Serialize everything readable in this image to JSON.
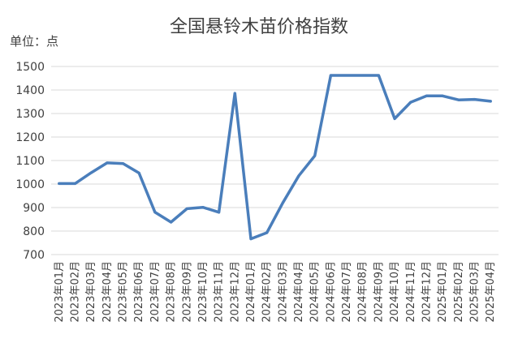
{
  "chart_data": {
    "type": "line",
    "title": "全国悬铃木苗价格指数",
    "unit_label": "单位：点",
    "ylabel": "",
    "xlabel": "",
    "ylim": [
      700,
      1500
    ],
    "yticks": [
      700,
      800,
      900,
      1000,
      1100,
      1200,
      1300,
      1400,
      1500
    ],
    "grid": true,
    "legend": "none",
    "line_color": "#4a7ebb",
    "categories": [
      "2023年01月",
      "2023年02月",
      "2023年03月",
      "2023年04月",
      "2023年05月",
      "2023年06月",
      "2023年07月",
      "2023年08月",
      "2023年09月",
      "2023年10月",
      "2023年11月",
      "2023年12月",
      "2024年01月",
      "2024年02月",
      "2024年03月",
      "2024年04月",
      "2024年05月",
      "2024年06月",
      "2024年07月",
      "2024年08月",
      "2024年09月",
      "2024年10月",
      "2024年11月",
      "2024年12月",
      "2025年01月",
      "2025年02月",
      "2025年03月",
      "2025年04月"
    ],
    "series": [
      {
        "values": [
          1002,
          1002,
          1048,
          1090,
          1087,
          1047,
          880,
          838,
          895,
          901,
          880,
          1386,
          767,
          793,
          920,
          1035,
          1120,
          1462,
          1462,
          1462,
          1462,
          1278,
          1348,
          1375,
          1375,
          1358,
          1360,
          1352
        ]
      }
    ]
  }
}
